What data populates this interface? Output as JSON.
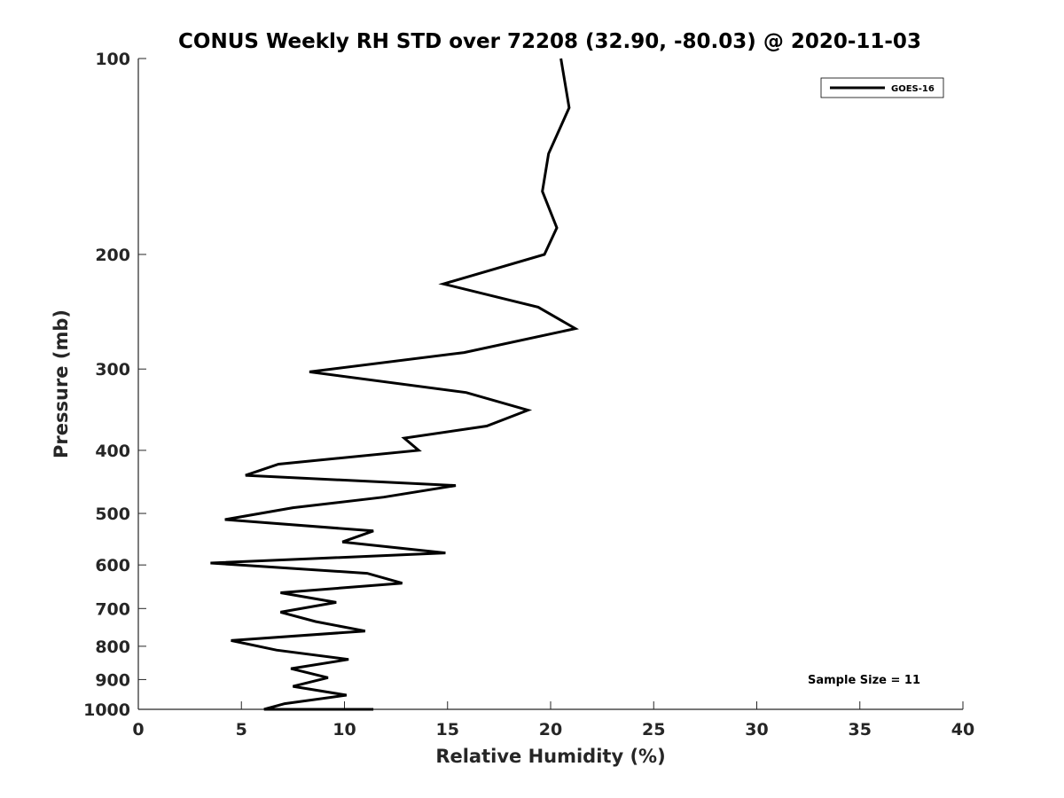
{
  "chart_data": {
    "type": "line",
    "title": "CONUS Weekly RH STD over 72208 (32.90, -80.03) @ 2020-11-03",
    "xlabel": "Relative Humidity (%)",
    "ylabel": "Pressure (mb)",
    "xlim": [
      0,
      40
    ],
    "ylim": [
      100,
      1000
    ],
    "y_scale": "log",
    "y_reversed": true,
    "x_ticks": [
      0,
      5,
      10,
      15,
      20,
      25,
      30,
      35,
      40
    ],
    "y_ticks": [
      100,
      200,
      300,
      400,
      500,
      600,
      700,
      800,
      900,
      1000
    ],
    "grid": false,
    "legend_position": "top-right",
    "series": [
      {
        "name": "GOES-16",
        "color": "#000000",
        "x": [
          20.5,
          20.9,
          19.9,
          19.6,
          20.3,
          19.7,
          14.8,
          19.4,
          21.2,
          15.8,
          8.3,
          15.9,
          18.9,
          16.9,
          12.9,
          13.6,
          6.8,
          5.2,
          15.4,
          11.9,
          7.5,
          4.2,
          11.4,
          9.9,
          14.9,
          3.5,
          11.1,
          12.8,
          6.9,
          9.6,
          6.9,
          8.6,
          11.0,
          4.5,
          6.7,
          10.2,
          7.4,
          9.2,
          7.5,
          10.1,
          7.1,
          6.1,
          6.6,
          8.4,
          11.4
        ],
        "y": [
          100,
          119,
          140,
          160,
          182,
          200,
          222,
          241,
          260,
          283,
          303,
          326,
          347,
          367,
          383,
          400,
          420,
          437,
          453,
          472,
          490,
          511,
          532,
          553,
          575,
          596,
          618,
          640,
          662,
          685,
          709,
          733,
          758,
          784,
          811,
          838,
          866,
          894,
          922,
          951,
          980,
          1000,
          1015,
          1030,
          1045
        ]
      }
    ],
    "annotations": [
      {
        "text": "Sample Size = 11"
      }
    ]
  }
}
